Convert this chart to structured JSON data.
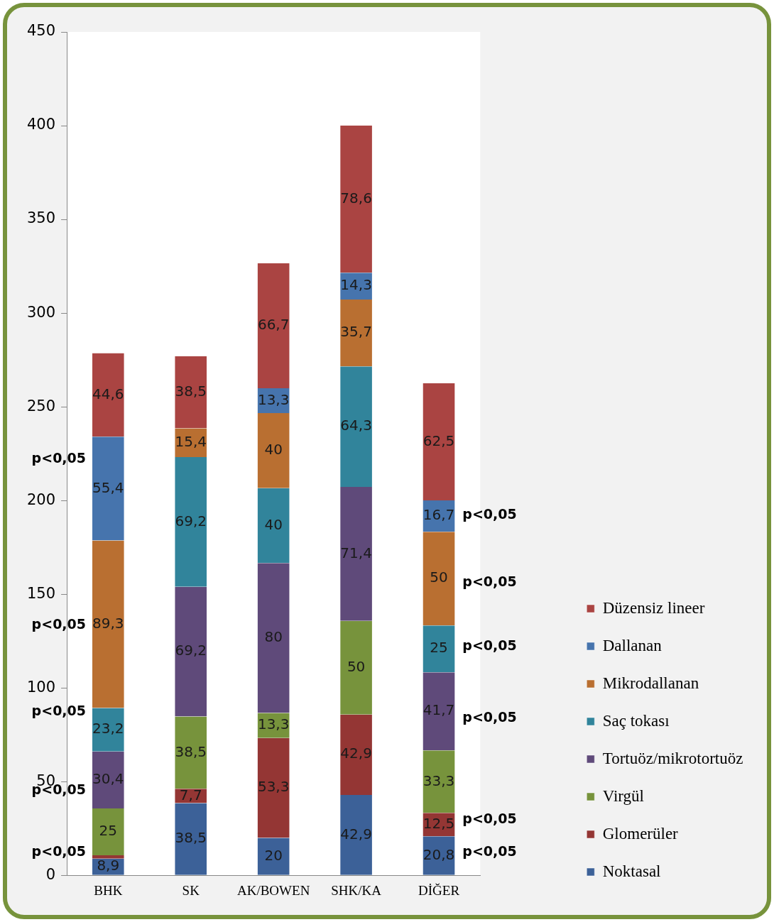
{
  "chart_data": {
    "type": "bar",
    "stacked": true,
    "categories": [
      "BHK",
      "SK",
      "AK/BOWEN",
      "SHK/KA",
      "DİĞER"
    ],
    "series": [
      {
        "name": "Noktasal",
        "color": "#3c6198",
        "values": [
          8.9,
          38.5,
          20,
          42.9,
          20.8
        ],
        "value_labels": [
          "8,9",
          "38,5",
          "20",
          "42,9",
          "20,8"
        ]
      },
      {
        "name": "Glomerüler",
        "color": "#943634",
        "values": [
          1.8,
          7.7,
          53.3,
          42.9,
          12.5
        ],
        "value_labels": [
          null,
          "7,7",
          "53,3",
          "42,9",
          "12,5"
        ]
      },
      {
        "name": "Virgül",
        "color": "#77933c",
        "values": [
          25,
          38.5,
          13.3,
          50,
          33.3
        ],
        "value_labels": [
          "25",
          "38,5",
          "13,3",
          "50",
          "33,3"
        ]
      },
      {
        "name": "Tortuöz/mikrotortuöz",
        "color": "#5f4a7a",
        "values": [
          30.4,
          69.2,
          80,
          71.4,
          41.7
        ],
        "value_labels": [
          "30,4",
          "69,2",
          "80",
          "71,4",
          "41,7"
        ]
      },
      {
        "name": "Saç tokası",
        "color": "#31849b",
        "values": [
          23.2,
          69.2,
          40,
          64.3,
          25
        ],
        "value_labels": [
          "23,2",
          "69,2",
          "40",
          "64,3",
          "25"
        ]
      },
      {
        "name": "Mikrodallanan",
        "color": "#b96f31",
        "values": [
          89.3,
          15.4,
          40,
          35.7,
          50
        ],
        "value_labels": [
          "89,3",
          "15,4",
          "40",
          "35,7",
          "50"
        ]
      },
      {
        "name": "Dallanan",
        "color": "#4674ad",
        "values": [
          55.4,
          null,
          13.3,
          14.3,
          16.7
        ],
        "value_labels": [
          "55,4",
          null,
          "13,3",
          "14,3",
          "16,7"
        ]
      },
      {
        "name": "Düzensiz lineer",
        "color": "#aa4442",
        "values": [
          44.6,
          38.5,
          66.7,
          78.6,
          62.5
        ],
        "value_labels": [
          "44,6",
          "38,5",
          "66,7",
          "78,6",
          "62,5"
        ]
      }
    ],
    "ylim": [
      0,
      450
    ],
    "yticks": [
      0,
      50,
      100,
      150,
      200,
      250,
      300,
      350,
      400,
      450
    ],
    "grid": false,
    "legend": "right",
    "annotations": [
      "p<0,05",
      "p<0,05",
      "p<0,05",
      "p<0,05",
      "p<0,05",
      "p<0,05",
      "p<0,05",
      "p<0,05",
      "p<0,05",
      "p<0,05",
      "p<0,05"
    ]
  }
}
